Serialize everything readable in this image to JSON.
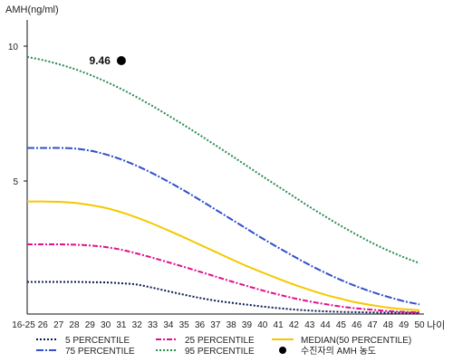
{
  "chart_data": {
    "type": "line",
    "ylabel": "AMH(ng/ml)",
    "xlabel": "나이",
    "y_ticks": [
      "5",
      "10"
    ],
    "ylim": [
      0,
      11
    ],
    "categories": [
      "16-25",
      "26",
      "27",
      "28",
      "29",
      "30",
      "31",
      "32",
      "33",
      "34",
      "35",
      "36",
      "37",
      "38",
      "39",
      "40",
      "41",
      "42",
      "43",
      "44",
      "45",
      "46",
      "47",
      "48",
      "49",
      "50"
    ],
    "series": [
      {
        "name": "5 PERCENTILE",
        "color": "#0a1a50",
        "dash": "2,2",
        "values": [
          1.2,
          1.2,
          1.2,
          1.2,
          1.19,
          1.18,
          1.15,
          1.1,
          0.98,
          0.85,
          0.72,
          0.6,
          0.5,
          0.42,
          0.35,
          0.28,
          0.22,
          0.17,
          0.13,
          0.1,
          0.08,
          0.07,
          0.06,
          0.05,
          0.05,
          0.04
        ]
      },
      {
        "name": "25 PERCENTILE",
        "color": "#e0108c",
        "dash": "6,2,2,2",
        "values": [
          2.6,
          2.6,
          2.6,
          2.59,
          2.56,
          2.5,
          2.4,
          2.26,
          2.1,
          1.93,
          1.76,
          1.58,
          1.4,
          1.22,
          1.05,
          0.88,
          0.73,
          0.59,
          0.47,
          0.37,
          0.28,
          0.21,
          0.16,
          0.11,
          0.08,
          0.06
        ]
      },
      {
        "name": "MEDIAN(50 PERCENTILE)",
        "color": "#f5c800",
        "dash": "",
        "values": [
          4.2,
          4.2,
          4.19,
          4.15,
          4.07,
          3.96,
          3.8,
          3.6,
          3.37,
          3.12,
          2.86,
          2.59,
          2.32,
          2.05,
          1.79,
          1.55,
          1.32,
          1.1,
          0.9,
          0.72,
          0.57,
          0.43,
          0.33,
          0.24,
          0.18,
          0.14
        ]
      },
      {
        "name": "75 PERCENTILE",
        "color": "#3050c8",
        "dash": "8,2,2,2",
        "values": [
          6.2,
          6.2,
          6.2,
          6.18,
          6.1,
          5.96,
          5.77,
          5.53,
          5.25,
          4.94,
          4.61,
          4.26,
          3.9,
          3.54,
          3.18,
          2.82,
          2.48,
          2.15,
          1.83,
          1.54,
          1.27,
          1.03,
          0.82,
          0.64,
          0.48,
          0.36
        ]
      },
      {
        "name": "95 PERCENTILE",
        "color": "#2a8a50",
        "dash": "2,2",
        "values": [
          9.6,
          9.48,
          9.33,
          9.15,
          8.93,
          8.68,
          8.4,
          8.09,
          7.76,
          7.41,
          7.05,
          6.68,
          6.3,
          5.92,
          5.53,
          5.14,
          4.76,
          4.38,
          4.0,
          3.64,
          3.29,
          2.96,
          2.65,
          2.37,
          2.12,
          1.9
        ]
      }
    ],
    "points": [
      {
        "name": "수진자의 AMH 농도",
        "x_index": 6,
        "y": 9.46,
        "label": "9.46",
        "color": "#000000"
      }
    ],
    "legend_layout": "bottom, 3 columns"
  }
}
